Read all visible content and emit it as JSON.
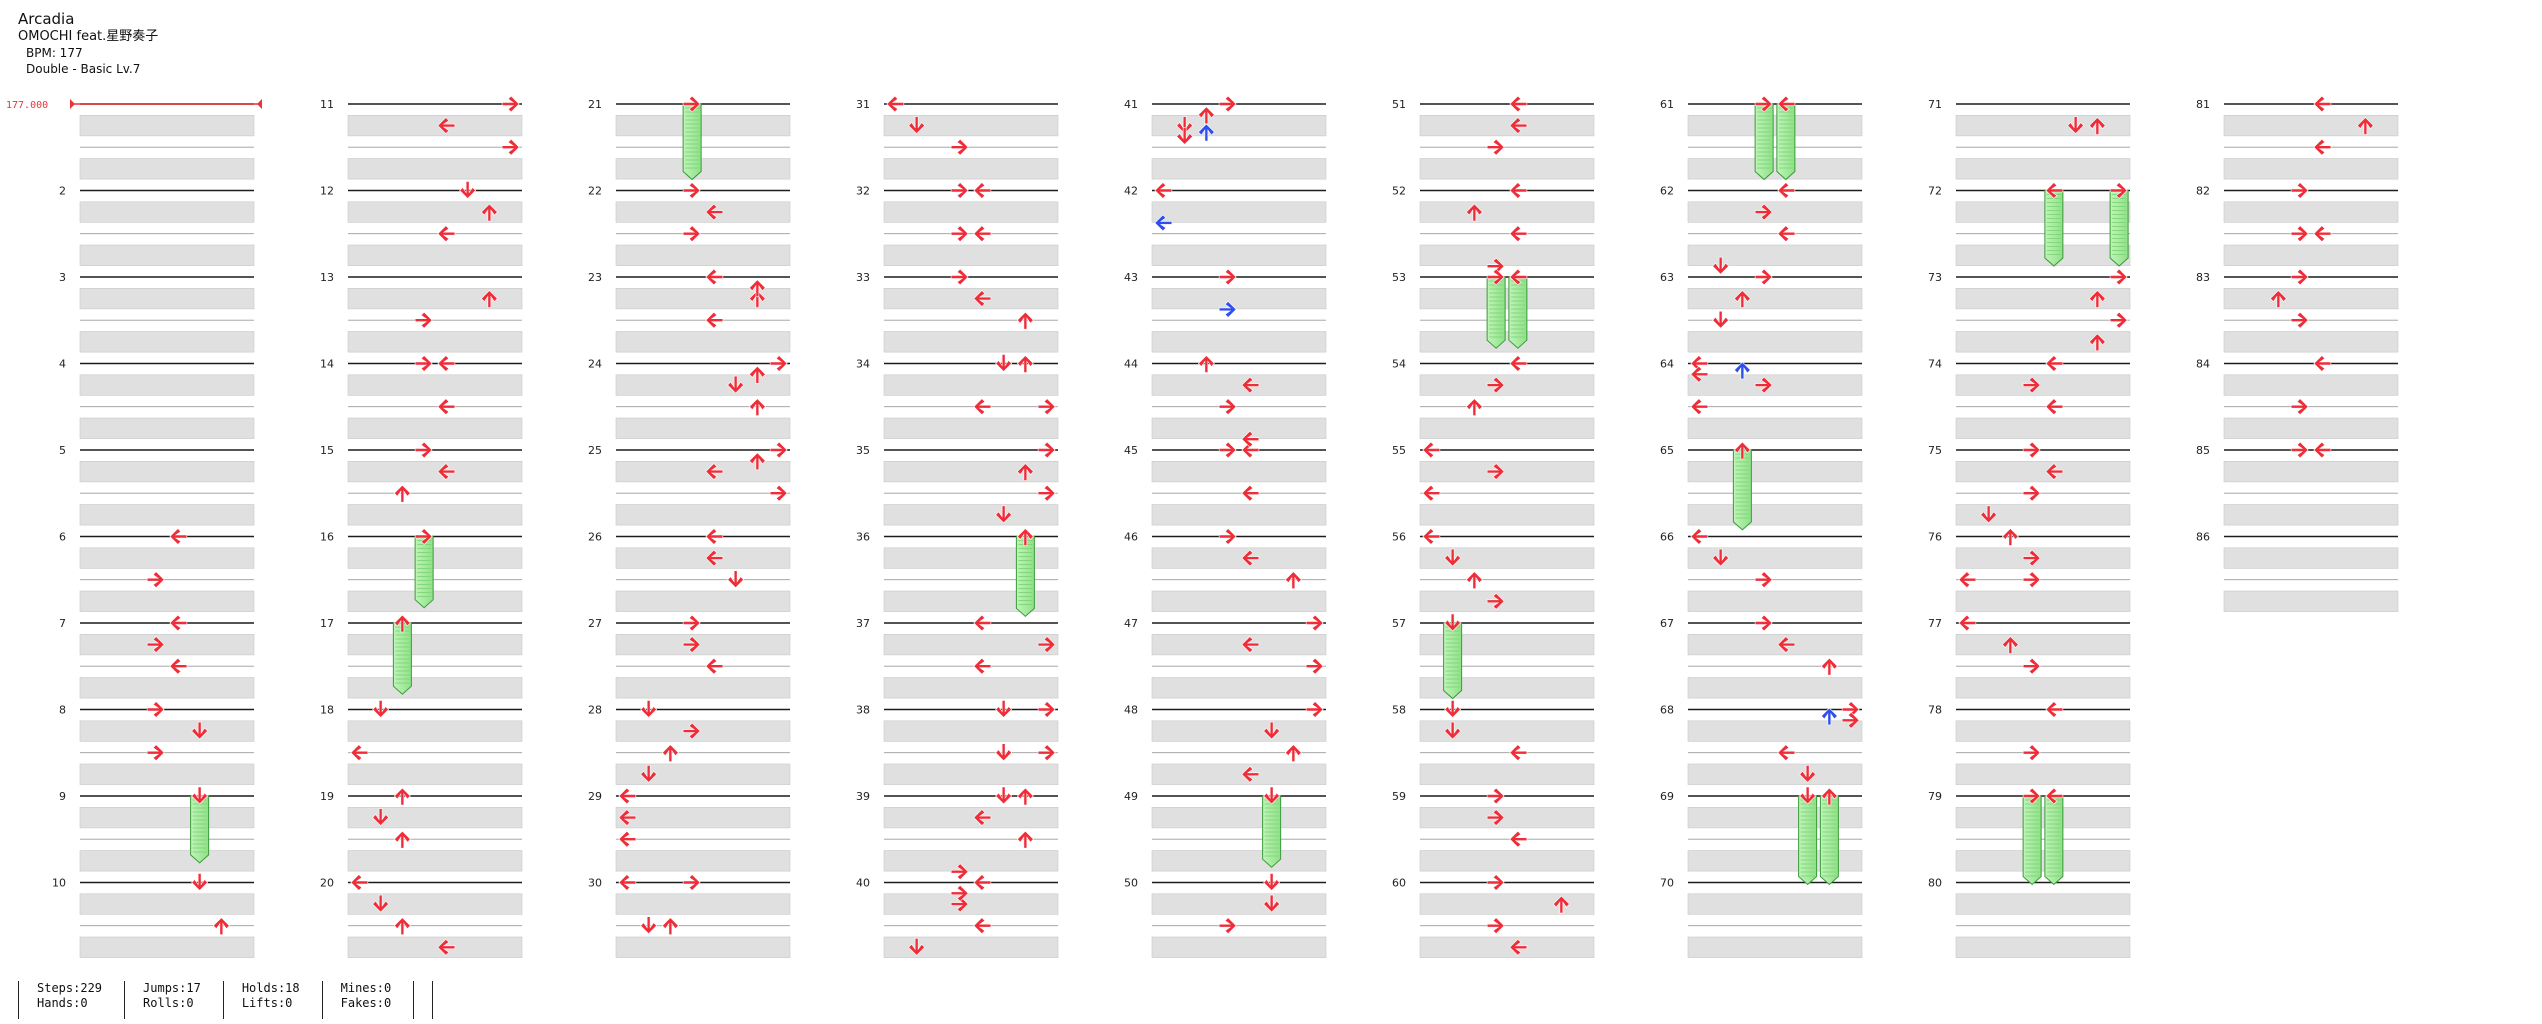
{
  "song": {
    "title": "Arcadia",
    "artist": "OMOCHI feat.星野奏子",
    "bpm_label": "BPM: 177",
    "difficulty_label": "Double - Basic  Lv.7"
  },
  "bpm_marker": {
    "label": "177.000",
    "color": "#e8343a"
  },
  "colors": {
    "red_arrow": "#ef2d39",
    "blue_arrow": "#2f4ef0",
    "hold_body": "#a9f0a3",
    "hold_edge": "#3a9a3a",
    "lane_gray": "#e0e0e0"
  },
  "lanes": [
    "left-1",
    "down-1",
    "up-1",
    "right-1",
    "left-2",
    "down-2",
    "up-2",
    "right-2"
  ],
  "notes": [
    {
      "m": 6,
      "r": 0,
      "c": 4
    },
    {
      "m": 6,
      "r": 2,
      "c": 3
    },
    {
      "m": 7,
      "r": 0,
      "c": 4
    },
    {
      "m": 7,
      "r": 1,
      "c": 3
    },
    {
      "m": 7,
      "r": 2,
      "c": 4
    },
    {
      "m": 8,
      "r": 0,
      "c": 3
    },
    {
      "m": 8,
      "r": 1,
      "c": 5
    },
    {
      "m": 8,
      "r": 2,
      "c": 3
    },
    {
      "m": 9,
      "r": 0,
      "c": 5,
      "hold": 1.5
    },
    {
      "m": 10,
      "r": 0,
      "c": 5
    },
    {
      "m": 10,
      "r": 2,
      "c": 6
    },
    {
      "m": 11,
      "r": 0,
      "c": 7
    },
    {
      "m": 11,
      "r": 1,
      "c": 4
    },
    {
      "m": 11,
      "r": 2,
      "c": 7
    },
    {
      "m": 12,
      "r": 0,
      "c": 5
    },
    {
      "m": 12,
      "r": 1,
      "c": 6
    },
    {
      "m": 12,
      "r": 2,
      "c": 4
    },
    {
      "m": 13,
      "r": 1,
      "c": 6
    },
    {
      "m": 13,
      "r": 2,
      "c": 3
    },
    {
      "m": 14,
      "r": 0,
      "c": 3
    },
    {
      "m": 14,
      "r": 0,
      "c": 4
    },
    {
      "m": 14,
      "r": 2,
      "c": 4
    },
    {
      "m": 15,
      "r": 0,
      "c": 3
    },
    {
      "m": 15,
      "r": 1,
      "c": 4
    },
    {
      "m": 15,
      "r": 2,
      "c": 2
    },
    {
      "m": 16,
      "r": 0,
      "c": 3,
      "hold": 1.6
    },
    {
      "m": 17,
      "r": 0,
      "c": 2,
      "hold": 1.6
    },
    {
      "m": 18,
      "r": 0,
      "c": 1
    },
    {
      "m": 18,
      "r": 2,
      "c": 0
    },
    {
      "m": 19,
      "r": 0,
      "c": 2
    },
    {
      "m": 19,
      "r": 1,
      "c": 1
    },
    {
      "m": 19,
      "r": 2,
      "c": 2
    },
    {
      "m": 20,
      "r": 0,
      "c": 0
    },
    {
      "m": 20,
      "r": 1,
      "c": 1
    },
    {
      "m": 20,
      "r": 2,
      "c": 2
    },
    {
      "m": 20,
      "r": 3,
      "c": 4
    },
    {
      "m": 21,
      "r": 0,
      "c": 3,
      "hold": 1.7
    },
    {
      "m": 22,
      "r": 0,
      "c": 3
    },
    {
      "m": 22,
      "r": 1,
      "c": 4
    },
    {
      "m": 22,
      "r": 2,
      "c": 3
    },
    {
      "m": 23,
      "r": 0,
      "c": 4
    },
    {
      "m": 23,
      "r": 1,
      "c": 6
    },
    {
      "m": 23,
      "r": 2,
      "c": 4
    },
    {
      "m": 23,
      "r": 0.5,
      "c": 6
    },
    {
      "m": 24,
      "r": 0,
      "c": 7
    },
    {
      "m": 24,
      "r": 1,
      "c": 5
    },
    {
      "m": 24,
      "r": 2,
      "c": 6
    },
    {
      "m": 24,
      "r": 0.5,
      "c": 6
    },
    {
      "m": 25,
      "r": 0,
      "c": 7
    },
    {
      "m": 25,
      "r": 1,
      "c": 4
    },
    {
      "m": 25,
      "r": 2,
      "c": 7
    },
    {
      "m": 25,
      "r": 0.5,
      "c": 6
    },
    {
      "m": 26,
      "r": 0,
      "c": 4
    },
    {
      "m": 26,
      "r": 1,
      "c": 4
    },
    {
      "m": 26,
      "r": 2,
      "c": 5
    },
    {
      "m": 27,
      "r": 0,
      "c": 3
    },
    {
      "m": 27,
      "r": 1,
      "c": 3
    },
    {
      "m": 27,
      "r": 2,
      "c": 4
    },
    {
      "m": 28,
      "r": 0,
      "c": 1
    },
    {
      "m": 28,
      "r": 1,
      "c": 3
    },
    {
      "m": 28,
      "r": 2,
      "c": 2
    },
    {
      "m": 28,
      "r": 3,
      "c": 1
    },
    {
      "m": 29,
      "r": 0,
      "c": 0
    },
    {
      "m": 29,
      "r": 1,
      "c": 0
    },
    {
      "m": 29,
      "r": 2,
      "c": 0
    },
    {
      "m": 30,
      "r": 0,
      "c": 0
    },
    {
      "m": 30,
      "r": 0,
      "c": 3
    },
    {
      "m": 30,
      "r": 2,
      "c": 1
    },
    {
      "m": 30,
      "r": 2,
      "c": 2
    },
    {
      "m": 31,
      "r": 0,
      "c": 0
    },
    {
      "m": 31,
      "r": 1,
      "c": 1
    },
    {
      "m": 31,
      "r": 2,
      "c": 3
    },
    {
      "m": 32,
      "r": 0,
      "c": 3
    },
    {
      "m": 32,
      "r": 0,
      "c": 4
    },
    {
      "m": 32,
      "r": 2,
      "c": 3
    },
    {
      "m": 32,
      "r": 2,
      "c": 4
    },
    {
      "m": 33,
      "r": 0,
      "c": 3
    },
    {
      "m": 33,
      "r": 1,
      "c": 4
    },
    {
      "m": 33,
      "r": 2,
      "c": 6
    },
    {
      "m": 34,
      "r": 0,
      "c": 5
    },
    {
      "m": 34,
      "r": 0,
      "c": 6
    },
    {
      "m": 34,
      "r": 2,
      "c": 4
    },
    {
      "m": 34,
      "r": 2,
      "c": 7
    },
    {
      "m": 35,
      "r": 0,
      "c": 7
    },
    {
      "m": 35,
      "r": 1,
      "c": 6
    },
    {
      "m": 35,
      "r": 2,
      "c": 7
    },
    {
      "m": 35,
      "r": 3,
      "c": 5
    },
    {
      "m": 36,
      "r": 0,
      "c": 6,
      "hold": 1.8
    },
    {
      "m": 37,
      "r": 0,
      "c": 4
    },
    {
      "m": 37,
      "r": 1,
      "c": 7
    },
    {
      "m": 37,
      "r": 2,
      "c": 4
    },
    {
      "m": 38,
      "r": 0,
      "c": 5
    },
    {
      "m": 38,
      "r": 0,
      "c": 7
    },
    {
      "m": 38,
      "r": 2,
      "c": 5
    },
    {
      "m": 38,
      "r": 2,
      "c": 7
    },
    {
      "m": 39,
      "r": 0,
      "c": 5
    },
    {
      "m": 39,
      "r": 0,
      "c": 6
    },
    {
      "m": 39,
      "r": 1,
      "c": 4
    },
    {
      "m": 39,
      "r": 2,
      "c": 6
    },
    {
      "m": 40,
      "r": 0,
      "c": 4
    },
    {
      "m": 40,
      "r": 1,
      "c": 3
    },
    {
      "m": 40,
      "r": 2,
      "c": 4
    },
    {
      "m": 40,
      "r": 3,
      "c": 1
    },
    {
      "m": 40,
      "r": -0.5,
      "c": 3
    },
    {
      "m": 40,
      "r": 0.5,
      "c": 3
    },
    {
      "m": 41,
      "r": 0,
      "c": 3
    },
    {
      "m": 41,
      "r": 0.5,
      "c": 2
    },
    {
      "m": 41,
      "r": 1,
      "c": 1
    },
    {
      "m": 41,
      "r": 1.5,
      "c": 1
    },
    {
      "m": 41,
      "r": 1.3,
      "c": 2,
      "color": "blue"
    },
    {
      "m": 42,
      "r": 0,
      "c": 0
    },
    {
      "m": 42,
      "r": 1.5,
      "c": 0,
      "color": "blue"
    },
    {
      "m": 43,
      "r": 0,
      "c": 3
    },
    {
      "m": 43,
      "r": 1.5,
      "c": 3,
      "color": "blue"
    },
    {
      "m": 44,
      "r": 0,
      "c": 2
    },
    {
      "m": 44,
      "r": 1,
      "c": 4
    },
    {
      "m": 44,
      "r": 2,
      "c": 3
    },
    {
      "m": 45,
      "r": 0,
      "c": 3
    },
    {
      "m": 45,
      "r": 0,
      "c": 4
    },
    {
      "m": 45,
      "r": -0.5,
      "c": 4
    },
    {
      "m": 45,
      "r": 2,
      "c": 4
    },
    {
      "m": 46,
      "r": 0,
      "c": 3
    },
    {
      "m": 46,
      "r": 1,
      "c": 4
    },
    {
      "m": 46,
      "r": 2,
      "c": 6
    },
    {
      "m": 47,
      "r": 0,
      "c": 7
    },
    {
      "m": 47,
      "r": 1,
      "c": 4
    },
    {
      "m": 47,
      "r": 2,
      "c": 7
    },
    {
      "m": 48,
      "r": 0,
      "c": 7
    },
    {
      "m": 48,
      "r": 1,
      "c": 5
    },
    {
      "m": 48,
      "r": 2,
      "c": 6
    },
    {
      "m": 48,
      "r": 3,
      "c": 4
    },
    {
      "m": 49,
      "r": 0,
      "c": 5,
      "hold": 1.6
    },
    {
      "m": 50,
      "r": 0,
      "c": 5
    },
    {
      "m": 50,
      "r": 1,
      "c": 5
    },
    {
      "m": 50,
      "r": 2,
      "c": 3
    },
    {
      "m": 51,
      "r": 0,
      "c": 4
    },
    {
      "m": 51,
      "r": 1,
      "c": 4
    },
    {
      "m": 51,
      "r": 2,
      "c": 3
    },
    {
      "m": 52,
      "r": 0,
      "c": 4
    },
    {
      "m": 52,
      "r": 1,
      "c": 2
    },
    {
      "m": 52,
      "r": 2,
      "c": 4
    },
    {
      "m": 53,
      "r": -0.5,
      "c": 3
    },
    {
      "m": 53,
      "r": 0,
      "c": 3,
      "hold": 1.6
    },
    {
      "m": 53,
      "r": 0,
      "c": 4,
      "hold": 1.6
    },
    {
      "m": 54,
      "r": 0,
      "c": 4
    },
    {
      "m": 54,
      "r": 1,
      "c": 3
    },
    {
      "m": 54,
      "r": 2,
      "c": 2
    },
    {
      "m": 55,
      "r": 0,
      "c": 0
    },
    {
      "m": 55,
      "r": 1,
      "c": 3
    },
    {
      "m": 55,
      "r": 2,
      "c": 0
    },
    {
      "m": 56,
      "r": 0,
      "c": 0
    },
    {
      "m": 56,
      "r": 1,
      "c": 1
    },
    {
      "m": 56,
      "r": 2,
      "c": 2
    },
    {
      "m": 56,
      "r": 3,
      "c": 3
    },
    {
      "m": 57,
      "r": 0,
      "c": 1,
      "hold": 1.7
    },
    {
      "m": 58,
      "r": 0,
      "c": 1
    },
    {
      "m": 58,
      "r": 1,
      "c": 1
    },
    {
      "m": 58,
      "r": 2,
      "c": 4
    },
    {
      "m": 59,
      "r": 0,
      "c": 3
    },
    {
      "m": 59,
      "r": 1,
      "c": 3
    },
    {
      "m": 59,
      "r": 2,
      "c": 4
    },
    {
      "m": 60,
      "r": 0,
      "c": 3
    },
    {
      "m": 60,
      "r": 1,
      "c": 6
    },
    {
      "m": 60,
      "r": 2,
      "c": 3
    },
    {
      "m": 60,
      "r": 3,
      "c": 4
    },
    {
      "m": 61,
      "r": 0,
      "c": 3,
      "hold": 1.7
    },
    {
      "m": 61,
      "r": 0,
      "c": 4,
      "hold": 1.7
    },
    {
      "m": 62,
      "r": 0,
      "c": 4
    },
    {
      "m": 62,
      "r": 1,
      "c": 3
    },
    {
      "m": 62,
      "r": 2,
      "c": 4
    },
    {
      "m": 63,
      "r": -0.5,
      "c": 1
    },
    {
      "m": 63,
      "r": 0,
      "c": 3
    },
    {
      "m": 63,
      "r": 1,
      "c": 2
    },
    {
      "m": 63,
      "r": 2,
      "c": 1
    },
    {
      "m": 64,
      "r": 0,
      "c": 0
    },
    {
      "m": 64,
      "r": 0.5,
      "c": 0
    },
    {
      "m": 64,
      "r": 0.3,
      "c": 2,
      "color": "blue"
    },
    {
      "m": 64,
      "r": 1,
      "c": 3
    },
    {
      "m": 64,
      "r": 2,
      "c": 0
    },
    {
      "m": 65,
      "r": 0,
      "c": 2,
      "hold": 1.8
    },
    {
      "m": 66,
      "r": 0,
      "c": 0
    },
    {
      "m": 66,
      "r": 1,
      "c": 1
    },
    {
      "m": 66,
      "r": 2,
      "c": 3
    },
    {
      "m": 67,
      "r": 0,
      "c": 3
    },
    {
      "m": 67,
      "r": 1,
      "c": 4
    },
    {
      "m": 67,
      "r": 2,
      "c": 6
    },
    {
      "m": 68,
      "r": 0,
      "c": 7
    },
    {
      "m": 68,
      "r": 0.5,
      "c": 7
    },
    {
      "m": 68,
      "r": 0.3,
      "c": 6,
      "color": "blue"
    },
    {
      "m": 68,
      "r": 2,
      "c": 4
    },
    {
      "m": 68,
      "r": 3,
      "c": 5
    },
    {
      "m": 69,
      "r": 0,
      "c": 5,
      "hold": 2
    },
    {
      "m": 69,
      "r": 0,
      "c": 6,
      "hold": 2
    },
    {
      "m": 71,
      "r": 1,
      "c": 5
    },
    {
      "m": 71,
      "r": 1,
      "c": 6
    },
    {
      "m": 72,
      "r": 0,
      "c": 4,
      "hold": 1.7
    },
    {
      "m": 72,
      "r": 0,
      "c": 7,
      "hold": 1.7
    },
    {
      "m": 73,
      "r": 0,
      "c": 7
    },
    {
      "m": 73,
      "r": 1,
      "c": 6
    },
    {
      "m": 73,
      "r": 2,
      "c": 7
    },
    {
      "m": 73,
      "r": 3,
      "c": 6
    },
    {
      "m": 74,
      "r": 0,
      "c": 4
    },
    {
      "m": 74,
      "r": 1,
      "c": 3
    },
    {
      "m": 74,
      "r": 2,
      "c": 4
    },
    {
      "m": 75,
      "r": 0,
      "c": 3
    },
    {
      "m": 75,
      "r": 1,
      "c": 4
    },
    {
      "m": 75,
      "r": 2,
      "c": 3
    },
    {
      "m": 75,
      "r": 3,
      "c": 1
    },
    {
      "m": 76,
      "r": 0,
      "c": 2
    },
    {
      "m": 76,
      "r": 1,
      "c": 3
    },
    {
      "m": 76,
      "r": 2,
      "c": 0
    },
    {
      "m": 76,
      "r": 2,
      "c": 3
    },
    {
      "m": 77,
      "r": 0,
      "c": 0
    },
    {
      "m": 77,
      "r": 1,
      "c": 2
    },
    {
      "m": 77,
      "r": 2,
      "c": 3
    },
    {
      "m": 78,
      "r": 0,
      "c": 4
    },
    {
      "m": 78,
      "r": 2,
      "c": 3
    },
    {
      "m": 79,
      "r": 0,
      "c": 3,
      "hold": 2
    },
    {
      "m": 79,
      "r": 0,
      "c": 4,
      "hold": 2
    },
    {
      "m": 81,
      "r": 0,
      "c": 4
    },
    {
      "m": 81,
      "r": 1,
      "c": 6
    },
    {
      "m": 81,
      "r": 2,
      "c": 4
    },
    {
      "m": 82,
      "r": 0,
      "c": 3
    },
    {
      "m": 82,
      "r": 2,
      "c": 3
    },
    {
      "m": 82,
      "r": 2,
      "c": 4
    },
    {
      "m": 83,
      "r": 0,
      "c": 3
    },
    {
      "m": 83,
      "r": 1,
      "c": 2
    },
    {
      "m": 83,
      "r": 2,
      "c": 3
    },
    {
      "m": 84,
      "r": 0,
      "c": 4
    },
    {
      "m": 84,
      "r": 2,
      "c": 3
    },
    {
      "m": 85,
      "r": 0,
      "c": 3
    },
    {
      "m": 85,
      "r": 0,
      "c": 4
    }
  ],
  "stats": [
    [
      {
        "label": "Steps:229"
      },
      {
        "label": "Hands:0"
      }
    ],
    [
      {
        "label": "Jumps:17"
      },
      {
        "label": "Rolls:0"
      }
    ],
    [
      {
        "label": "Holds:18"
      },
      {
        "label": "Lifts:0"
      }
    ],
    [
      {
        "label": "Mines:0"
      },
      {
        "label": "Fakes:0"
      }
    ],
    []
  ]
}
